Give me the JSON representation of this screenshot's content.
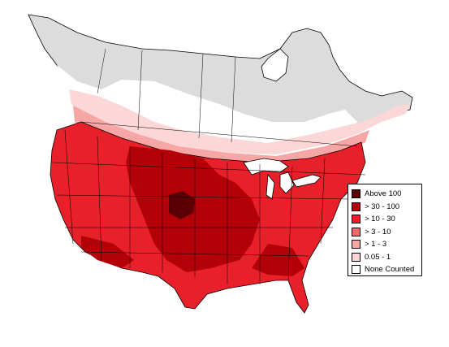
{
  "map": {
    "colors": {
      "above_100": "#5a0005",
      "30_100": "#b30008",
      "10_30": "#e8202a",
      "3_10": "#f26a6a",
      "1_3": "#f7a6a6",
      "0_05_1": "#fcd7d7",
      "none": "#dcdcdc",
      "land_white": "#ffffff"
    }
  },
  "legend": {
    "items": [
      {
        "label": "Above 100",
        "color": "#5a0005"
      },
      {
        "label": "> 30 - 100",
        "color": "#b30008"
      },
      {
        "label": "> 10 - 30",
        "color": "#e8202a"
      },
      {
        "label": "> 3 - 10",
        "color": "#f26a6a"
      },
      {
        "label": "> 1 - 3",
        "color": "#f7a6a6"
      },
      {
        "label": "0.05 - 1",
        "color": "#fcd7d7"
      },
      {
        "label": "None Counted",
        "color": "#ffffff"
      }
    ]
  }
}
